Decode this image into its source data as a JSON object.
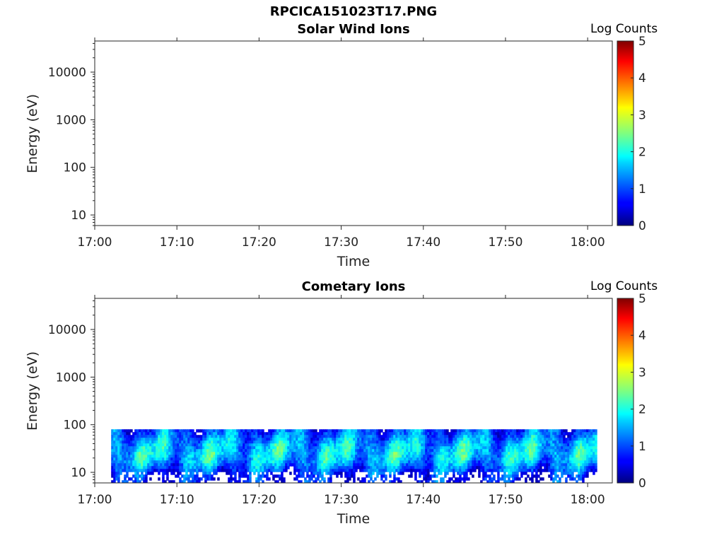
{
  "figure": {
    "title": "RPCICA151023T17.PNG"
  },
  "colorbar": {
    "label": "Log Counts",
    "ticks": [
      "0",
      "1",
      "2",
      "3",
      "4",
      "5"
    ],
    "range": [
      0,
      5
    ],
    "colormap": "jet"
  },
  "chart_data": [
    {
      "type": "heatmap",
      "title": "Solar Wind Ions",
      "xlabel": "Time",
      "ylabel": "Energy (eV)",
      "x_ticks": [
        "17:00",
        "17:10",
        "17:20",
        "17:30",
        "17:40",
        "17:50",
        "18:00"
      ],
      "y_ticks": [
        "10",
        "100",
        "1000",
        "10000"
      ],
      "y_scale": "log",
      "xlim": [
        "17:00",
        "18:03"
      ],
      "ylim": [
        6,
        45000
      ],
      "data": []
    },
    {
      "type": "heatmap",
      "title": "Cometary Ions",
      "xlabel": "Time",
      "ylabel": "Energy (eV)",
      "x_ticks": [
        "17:00",
        "17:10",
        "17:20",
        "17:30",
        "17:40",
        "17:50",
        "18:00"
      ],
      "y_ticks": [
        "10",
        "100",
        "1000",
        "10000"
      ],
      "y_scale": "log",
      "xlim": [
        "17:00",
        "18:03"
      ],
      "ylim": [
        6,
        45000
      ],
      "coverage": {
        "time_start": "17:02",
        "time_end": "18:01",
        "energy_min": 6,
        "energy_max": 80
      },
      "profile": {
        "energy_ev": [
          8,
          12,
          18,
          26,
          38,
          55,
          75
        ],
        "log_counts": [
          0.6,
          1.0,
          1.5,
          1.7,
          1.6,
          1.3,
          1.0
        ]
      }
    }
  ]
}
